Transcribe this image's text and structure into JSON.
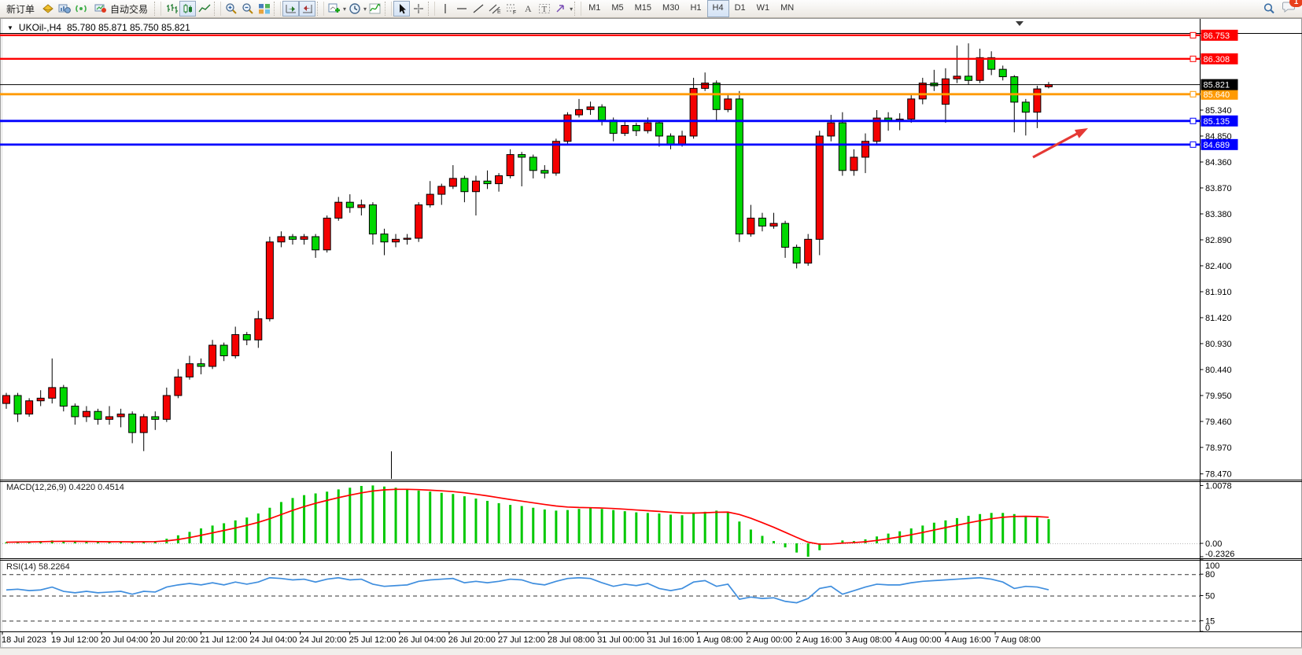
{
  "toolbar": {
    "new_order": "新订单",
    "auto_trading": "自动交易",
    "timeframes": [
      "M1",
      "M5",
      "M15",
      "M30",
      "H1",
      "H4",
      "D1",
      "W1",
      "MN"
    ],
    "active_timeframe": "H4",
    "notification_count": "1"
  },
  "window": {
    "title_symbol": "UKOil-,H4",
    "title_ohlc": "85.780 85.871 85.750 85.821"
  },
  "chart_data": {
    "type": "candlestick",
    "symbol": "UKOil-",
    "timeframe": "H4",
    "ohlc": {
      "open": "85.780",
      "high": "85.871",
      "low": "85.750",
      "close": "85.821"
    },
    "bull_color": "#f40000",
    "bear_color": "#00d800",
    "price_axis_ticks": [
      "85.340",
      "84.850",
      "84.360",
      "83.870",
      "83.380",
      "82.890",
      "82.400",
      "81.910",
      "81.420",
      "80.930",
      "80.440",
      "79.950",
      "79.460",
      "78.970",
      "78.470"
    ],
    "level_lines": [
      {
        "price": "86.753",
        "color": "#fe0000",
        "width": 2.4
      },
      {
        "price": "86.308",
        "color": "#fe0000",
        "width": 2.4
      },
      {
        "price": "85.640",
        "color": "#ff9a00",
        "width": 2.8
      },
      {
        "price": "85.135",
        "color": "#0000fe",
        "width": 2.8
      },
      {
        "price": "84.689",
        "color": "#0000fe",
        "width": 2.8
      }
    ],
    "current_price": {
      "label": "85.821"
    },
    "candles": [
      [
        79.8,
        80.0,
        79.7,
        79.95
      ],
      [
        79.95,
        80.0,
        79.45,
        79.6
      ],
      [
        79.6,
        79.9,
        79.55,
        79.85
      ],
      [
        79.85,
        80.05,
        79.75,
        79.9
      ],
      [
        79.9,
        80.65,
        79.8,
        80.1
      ],
      [
        80.1,
        80.15,
        79.65,
        79.75
      ],
      [
        79.75,
        79.8,
        79.4,
        79.55
      ],
      [
        79.55,
        79.75,
        79.45,
        79.65
      ],
      [
        79.65,
        79.7,
        79.4,
        79.5
      ],
      [
        79.5,
        79.75,
        79.4,
        79.55
      ],
      [
        79.55,
        79.7,
        79.35,
        79.6
      ],
      [
        79.6,
        79.65,
        79.05,
        79.25
      ],
      [
        79.25,
        79.6,
        78.9,
        79.55
      ],
      [
        79.55,
        79.65,
        79.3,
        79.5
      ],
      [
        79.5,
        80.1,
        79.45,
        79.95
      ],
      [
        79.95,
        80.45,
        79.9,
        80.3
      ],
      [
        80.3,
        80.7,
        80.25,
        80.55
      ],
      [
        80.55,
        80.65,
        80.35,
        80.5
      ],
      [
        80.5,
        81.0,
        80.45,
        80.9
      ],
      [
        80.9,
        80.95,
        80.6,
        80.7
      ],
      [
        80.7,
        81.25,
        80.65,
        81.1
      ],
      [
        81.1,
        81.15,
        80.9,
        81.0
      ],
      [
        81.0,
        81.55,
        80.85,
        81.4
      ],
      [
        81.4,
        82.95,
        81.35,
        82.85
      ],
      [
        82.85,
        83.05,
        82.75,
        82.95
      ],
      [
        82.95,
        83.0,
        82.8,
        82.9
      ],
      [
        82.9,
        83.0,
        82.8,
        82.95
      ],
      [
        82.95,
        83.0,
        82.55,
        82.7
      ],
      [
        82.7,
        83.35,
        82.65,
        83.3
      ],
      [
        83.3,
        83.7,
        83.25,
        83.6
      ],
      [
        83.6,
        83.75,
        83.4,
        83.5
      ],
      [
        83.5,
        83.65,
        83.35,
        83.55
      ],
      [
        83.55,
        83.6,
        82.8,
        83.0
      ],
      [
        83.0,
        83.1,
        82.6,
        82.85
      ],
      [
        82.85,
        83.0,
        82.75,
        82.9
      ],
      [
        82.9,
        83.0,
        82.8,
        82.92
      ],
      [
        82.92,
        83.6,
        82.85,
        83.55
      ],
      [
        83.55,
        84.0,
        83.5,
        83.75
      ],
      [
        83.75,
        83.95,
        83.55,
        83.9
      ],
      [
        83.9,
        84.3,
        83.85,
        84.05
      ],
      [
        84.05,
        84.1,
        83.6,
        83.8
      ],
      [
        83.8,
        84.1,
        83.35,
        84.0
      ],
      [
        84.0,
        84.2,
        83.85,
        83.95
      ],
      [
        83.95,
        84.15,
        83.8,
        84.1
      ],
      [
        84.1,
        84.6,
        84.05,
        84.5
      ],
      [
        84.5,
        84.55,
        83.9,
        84.45
      ],
      [
        84.45,
        84.5,
        84.05,
        84.2
      ],
      [
        84.2,
        84.3,
        84.05,
        84.15
      ],
      [
        84.15,
        84.8,
        84.1,
        84.75
      ],
      [
        84.75,
        85.3,
        84.7,
        85.25
      ],
      [
        85.25,
        85.55,
        85.2,
        85.35
      ],
      [
        85.35,
        85.5,
        85.25,
        85.4
      ],
      [
        85.4,
        85.45,
        85.05,
        85.15
      ],
      [
        85.15,
        85.2,
        84.75,
        84.9
      ],
      [
        84.9,
        85.15,
        84.85,
        85.05
      ],
      [
        85.05,
        85.1,
        84.85,
        84.95
      ],
      [
        84.95,
        85.2,
        84.9,
        85.1
      ],
      [
        85.1,
        85.15,
        84.65,
        84.85
      ],
      [
        84.85,
        84.9,
        84.6,
        84.7
      ],
      [
        84.7,
        84.95,
        84.65,
        84.85
      ],
      [
        84.85,
        85.95,
        84.8,
        85.75
      ],
      [
        85.75,
        86.05,
        85.7,
        85.85
      ],
      [
        85.85,
        85.9,
        85.15,
        85.35
      ],
      [
        85.35,
        85.65,
        85.3,
        85.55
      ],
      [
        85.55,
        85.7,
        82.85,
        83.0
      ],
      [
        83.0,
        83.55,
        82.95,
        83.3
      ],
      [
        83.3,
        83.4,
        83.05,
        83.15
      ],
      [
        83.15,
        83.4,
        83.1,
        83.2
      ],
      [
        83.2,
        83.25,
        82.55,
        82.75
      ],
      [
        82.75,
        82.8,
        82.35,
        82.45
      ],
      [
        82.45,
        83.0,
        82.4,
        82.9
      ],
      [
        82.9,
        84.95,
        82.6,
        84.85
      ],
      [
        84.85,
        85.25,
        84.75,
        85.1
      ],
      [
        85.1,
        85.3,
        84.1,
        84.2
      ],
      [
        84.2,
        84.6,
        84.1,
        84.45
      ],
      [
        84.45,
        84.9,
        84.15,
        84.75
      ],
      [
        84.75,
        85.34,
        84.7,
        85.19
      ],
      [
        85.19,
        85.3,
        84.95,
        85.15
      ],
      [
        85.15,
        85.28,
        84.96,
        85.17
      ],
      [
        85.17,
        85.65,
        85.1,
        85.55
      ],
      [
        85.55,
        85.95,
        85.45,
        85.85
      ],
      [
        85.85,
        86.1,
        85.7,
        85.8
      ],
      [
        85.45,
        86.13,
        85.1,
        85.93
      ],
      [
        85.93,
        86.56,
        85.85,
        85.98
      ],
      [
        85.98,
        86.6,
        85.82,
        85.9
      ],
      [
        85.9,
        86.5,
        85.85,
        86.33
      ],
      [
        86.33,
        86.45,
        86.0,
        86.11
      ],
      [
        86.11,
        86.18,
        85.9,
        85.97
      ],
      [
        85.97,
        86.0,
        84.92,
        85.49
      ],
      [
        85.49,
        85.55,
        84.86,
        85.3
      ],
      [
        85.3,
        85.8,
        85.0,
        85.74
      ],
      [
        85.78,
        85.871,
        85.75,
        85.821
      ]
    ],
    "macd": {
      "label": "MACD(12,26,9) 0.4220 0.4514",
      "params": "12,26,9",
      "main_value": "0.4220",
      "signal_value": "0.4514",
      "axis_labels": [
        "1.0078",
        "0.00",
        "-0.2326"
      ],
      "hist_color": "#00c800",
      "signal_color": "#ff0000",
      "histogram": [
        0.02,
        0.03,
        0.03,
        0.04,
        0.05,
        0.04,
        0.03,
        0.03,
        0.02,
        0.02,
        0.03,
        0.02,
        0.03,
        0.04,
        0.08,
        0.14,
        0.2,
        0.26,
        0.31,
        0.35,
        0.4,
        0.45,
        0.52,
        0.62,
        0.72,
        0.79,
        0.84,
        0.87,
        0.9,
        0.94,
        0.97,
        1.0,
        1.0078,
        0.99,
        0.97,
        0.94,
        0.92,
        0.9,
        0.88,
        0.86,
        0.82,
        0.78,
        0.74,
        0.7,
        0.67,
        0.65,
        0.62,
        0.59,
        0.57,
        0.58,
        0.6,
        0.61,
        0.6,
        0.58,
        0.56,
        0.54,
        0.53,
        0.52,
        0.5,
        0.49,
        0.52,
        0.55,
        0.57,
        0.55,
        0.38,
        0.24,
        0.13,
        0.04,
        -0.07,
        -0.16,
        -0.2326,
        -0.12,
        0.0,
        0.05,
        0.04,
        0.07,
        0.12,
        0.17,
        0.21,
        0.26,
        0.31,
        0.36,
        0.4,
        0.44,
        0.48,
        0.51,
        0.53,
        0.53,
        0.51,
        0.48,
        0.45,
        0.422
      ]
    },
    "rsi": {
      "label": "RSI(14) 58.2264",
      "period": "14",
      "value": "58.2264",
      "axis_labels": [
        "100",
        "80",
        "50",
        "15",
        "0"
      ],
      "levels": [
        80,
        50,
        15
      ],
      "line_color": "#3f8ede",
      "values": [
        58,
        59,
        57,
        58,
        62,
        56,
        54,
        56,
        54,
        55,
        56,
        52,
        56,
        55,
        62,
        65,
        67,
        65,
        68,
        65,
        69,
        66,
        69,
        75,
        74,
        72,
        73,
        69,
        73,
        75,
        72,
        73,
        66,
        63,
        64,
        65,
        70,
        72,
        73,
        74,
        68,
        70,
        68,
        70,
        73,
        72,
        67,
        65,
        70,
        74,
        75,
        74,
        68,
        63,
        66,
        64,
        67,
        60,
        57,
        60,
        69,
        71,
        63,
        66,
        45,
        48,
        46,
        47,
        42,
        40,
        46,
        60,
        63,
        52,
        57,
        62,
        66,
        65,
        65,
        68,
        70,
        71,
        72,
        73,
        74,
        75,
        73,
        69,
        60,
        63,
        62,
        58.2
      ]
    },
    "time_axis": [
      "18 Jul 2023",
      "19 Jul 12:00",
      "20 Jul 04:00",
      "20 Jul 20:00",
      "21 Jul 12:00",
      "24 Jul 04:00",
      "24 Jul 20:00",
      "25 Jul 12:00",
      "26 Jul 04:00",
      "26 Jul 20:00",
      "27 Jul 12:00",
      "28 Jul 08:00",
      "31 Jul 00:00",
      "31 Jul 16:00",
      "1 Aug 08:00",
      "2 Aug 00:00",
      "2 Aug 16:00",
      "3 Aug 08:00",
      "4 Aug 00:00",
      "4 Aug 16:00",
      "7 Aug 08:00"
    ],
    "annotation_arrow": {
      "color": "#e53935"
    }
  }
}
